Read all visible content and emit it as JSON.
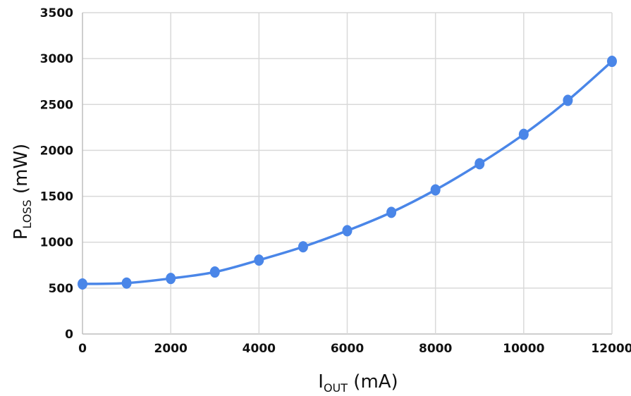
{
  "chart_data": {
    "type": "line",
    "title": "",
    "xlabel": {
      "main": "I",
      "sub": "OUT",
      "unit": " (mA)"
    },
    "ylabel": {
      "main": "P",
      "sub": "LOSS",
      "unit": " (mW)"
    },
    "xlim": [
      0,
      12000
    ],
    "ylim": [
      0,
      3500
    ],
    "xticks": [
      "0",
      "2000",
      "4000",
      "6000",
      "8000",
      "10000",
      "12000"
    ],
    "yticks": [
      "0",
      "500",
      "1000",
      "1500",
      "2000",
      "2500",
      "3000",
      "3500"
    ],
    "grid": true,
    "series": [
      {
        "color": "#4a86e8",
        "x": [
          0,
          1000,
          2000,
          3000,
          4000,
          5000,
          6000,
          7000,
          8000,
          9000,
          10000,
          11000,
          12000
        ],
        "y": [
          545,
          555,
          605,
          675,
          805,
          950,
          1125,
          1325,
          1570,
          1855,
          2175,
          2545,
          2970
        ]
      }
    ]
  }
}
